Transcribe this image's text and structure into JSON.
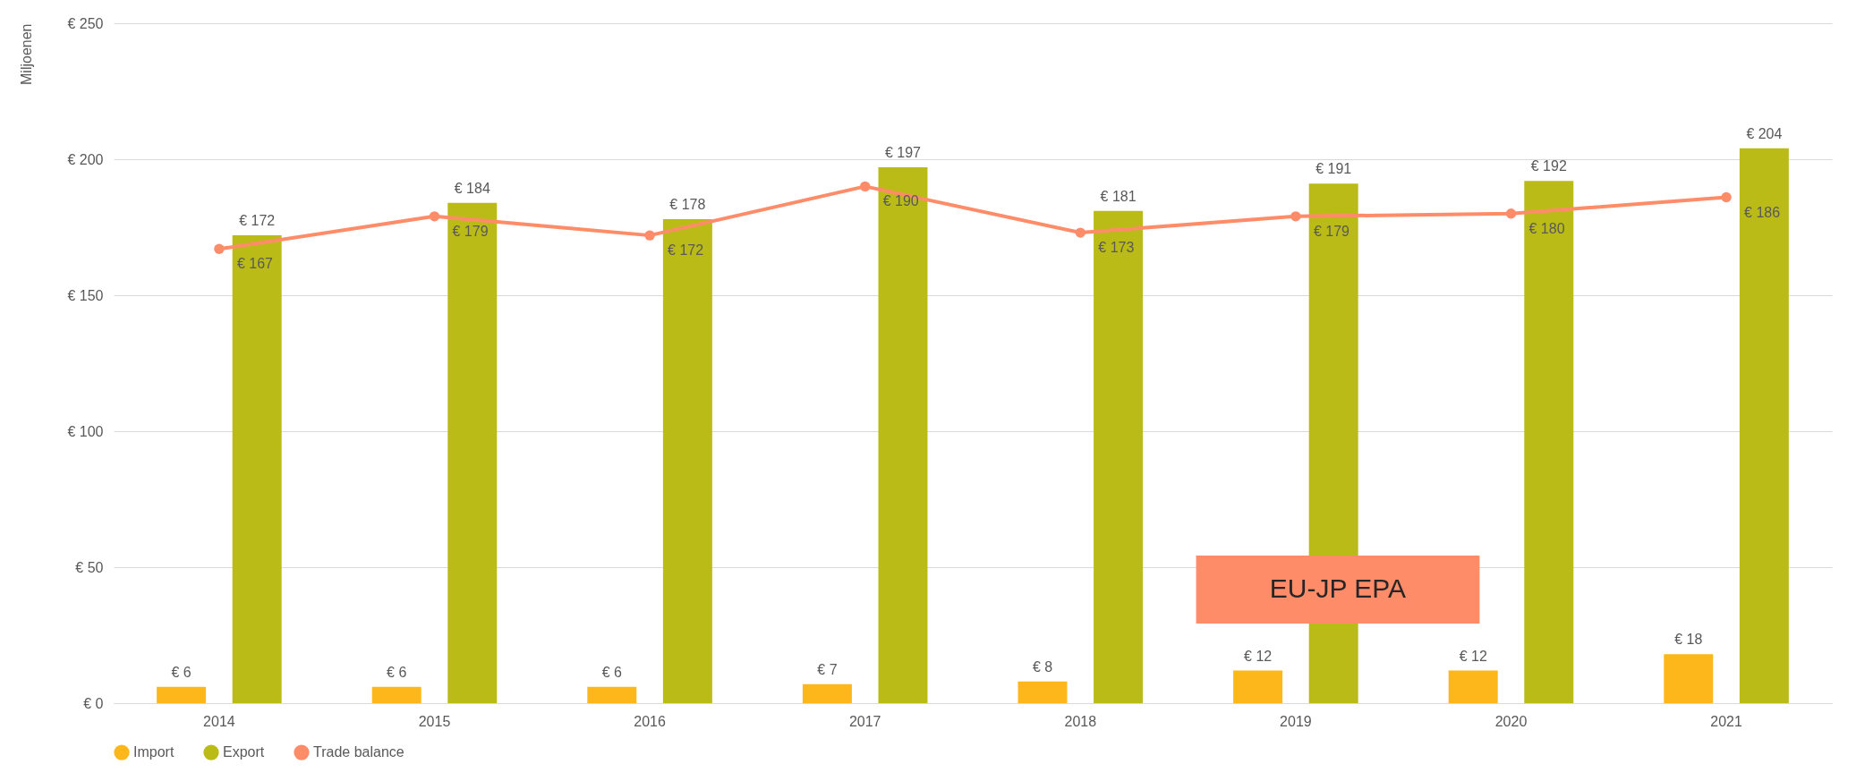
{
  "chart_data": {
    "type": "bar",
    "categories": [
      "2014",
      "2015",
      "2016",
      "2017",
      "2018",
      "2019",
      "2020",
      "2021"
    ],
    "ylabel": "Miljoenen",
    "series": [
      {
        "name": "Import",
        "color": "#fdb71a",
        "values": [
          6,
          6,
          6,
          7,
          8,
          12,
          12,
          18
        ],
        "value_labels": [
          "€ 6",
          "€ 6",
          "€ 6",
          "€ 7",
          "€ 8",
          "€ 12",
          "€ 12",
          "€ 18"
        ]
      },
      {
        "name": "Export",
        "color": "#bbbb17",
        "values": [
          172,
          184,
          178,
          197,
          181,
          191,
          192,
          204
        ],
        "value_labels": [
          "€ 172",
          "€ 184",
          "€ 178",
          "€ 197",
          "€ 181",
          "€ 191",
          "€ 192",
          "€ 204"
        ]
      },
      {
        "name": "Trade balance",
        "type": "line",
        "color": "#ff8c69",
        "values": [
          167,
          179,
          172,
          190,
          173,
          179,
          180,
          186
        ],
        "value_labels": [
          "€ 167",
          "€ 179",
          "€ 172",
          "€ 190",
          "€ 173",
          "€ 179",
          "€ 180",
          "€ 186"
        ]
      }
    ],
    "ylim": [
      0,
      250
    ],
    "yticks": [
      {
        "value": 0,
        "label": "€ 0"
      },
      {
        "value": 50,
        "label": "€ 50"
      },
      {
        "value": 100,
        "label": "€ 100"
      },
      {
        "value": 150,
        "label": "€ 150"
      },
      {
        "value": 200,
        "label": "€ 200"
      },
      {
        "value": 250,
        "label": "€ 250"
      }
    ],
    "annotations": [
      "EU-JP EPA"
    ],
    "grid": "y",
    "legend": "bottom",
    "marker": "circle",
    "line_style": "solid"
  }
}
